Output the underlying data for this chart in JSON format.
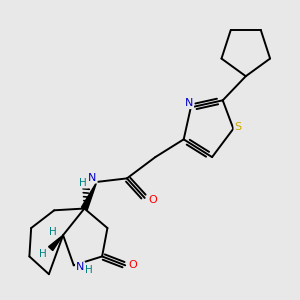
{
  "background_color": "#e8e8e8",
  "bond_color": "#000000",
  "atom_colors": {
    "N": "#0000cc",
    "O": "#ff0000",
    "S": "#ccaa00",
    "C": "#000000",
    "H": "#008080"
  },
  "figure_size": [
    3.0,
    3.0
  ],
  "dpi": 100,
  "bond_lw": 1.4
}
